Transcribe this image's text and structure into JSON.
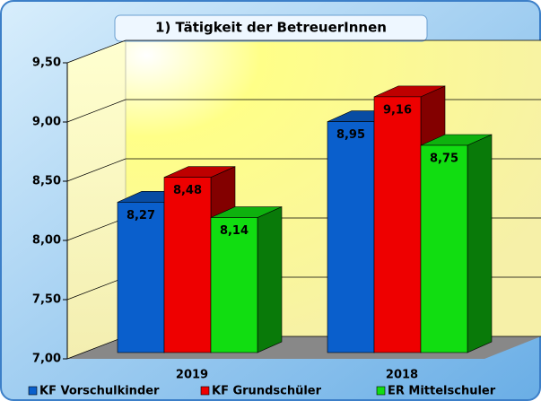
{
  "chart_data": {
    "type": "bar3d",
    "title": "1) Tätigkeit der BetreuerInnen",
    "categories": [
      "2019",
      "2018"
    ],
    "series": [
      {
        "name": "KF Vorschulkinder",
        "color": "#0a5fcc",
        "values": [
          8.27,
          8.95
        ],
        "value_labels": [
          "8,27",
          "8,95"
        ]
      },
      {
        "name": "KF Grundschüler",
        "color": "#ee0000",
        "values": [
          8.48,
          9.16
        ],
        "value_labels": [
          "8,48",
          "9,16"
        ]
      },
      {
        "name": "ER Mittelschuler",
        "color": "#11dd11",
        "values": [
          8.14,
          8.75
        ],
        "value_labels": [
          "8,14",
          "8,75"
        ]
      }
    ],
    "ylim": [
      7,
      9.5
    ],
    "yticks": [
      {
        "value": 7,
        "label": "7,00"
      },
      {
        "value": 7.5,
        "label": "7,50"
      },
      {
        "value": 8,
        "label": "8,00"
      },
      {
        "value": 8.5,
        "label": "8,50"
      },
      {
        "value": 9,
        "label": "9,00"
      },
      {
        "value": 9.5,
        "label": "9,50"
      }
    ],
    "grid": true,
    "legend": "bottom"
  }
}
